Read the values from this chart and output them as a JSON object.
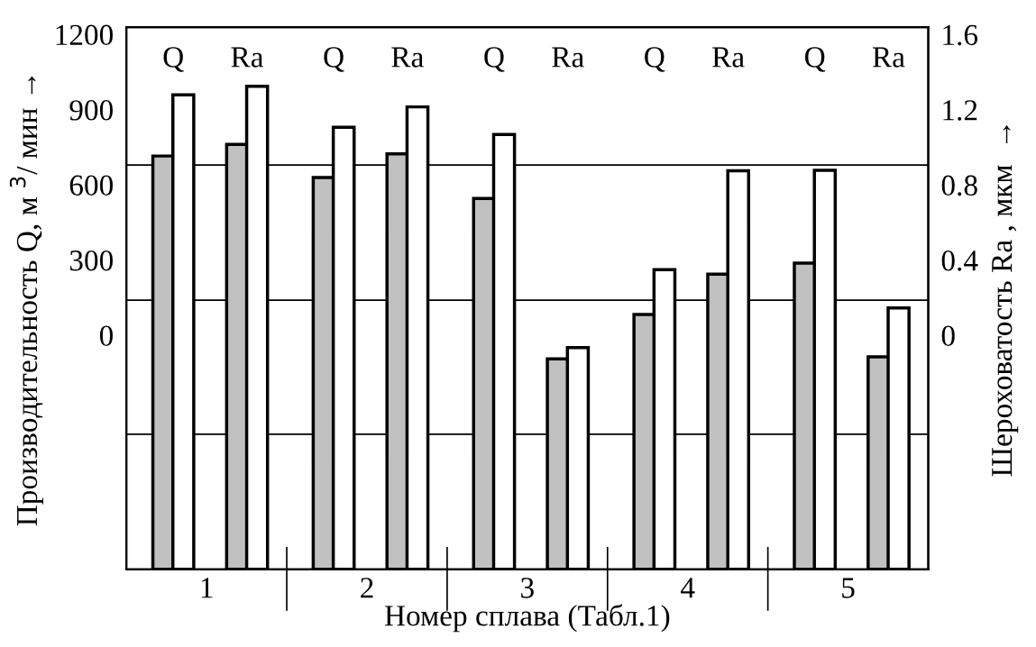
{
  "chart_data": {
    "type": "bar",
    "xlabel": "Номер сплава (Табл.1)",
    "ylabel": "Производительность Q, м $^{3}$/ мин →",
    "y2label": "Шероховатость Ra , мкм  →",
    "categories": [
      "1",
      "2",
      "3",
      "4",
      "5"
    ],
    "series": [
      {
        "color": "#c0c0c0",
        "base": [
          -934,
          -934,
          -934,
          -934,
          -934
        ],
        "values": [
          1649,
          1563,
          1480,
          1017,
          1222
        ]
      },
      {
        "color": "#ffffff",
        "base": [
          -934,
          -934,
          -934,
          -934,
          -934
        ],
        "values": [
          1893,
          1764,
          1735,
          1196,
          1592
        ]
      },
      {
        "color": "#c0c0c0",
        "axis": "y2",
        "base": [
          -1.245,
          -1.245,
          -1.245,
          -1.245,
          -1.245
        ],
        "values": [
          2.26,
          2.21,
          1.12,
          1.57,
          1.13
        ]
      },
      {
        "color": "#ffffff",
        "axis": "y2",
        "base": [
          -1.245,
          -1.245,
          -1.245,
          -1.245,
          -1.245
        ],
        "values": [
          2.57,
          2.46,
          1.18,
          2.12,
          1.39
        ]
      }
    ],
    "ylim": [
      -934,
      1229
    ],
    "yticks": [
      0,
      300,
      600,
      900,
      1200
    ],
    "y2lim": [
      -1.245,
      1.639
    ],
    "y2ticks": [
      0,
      0.4,
      0.8,
      1.2,
      1.6
    ],
    "ref_lines": [
      {
        "axis": "y",
        "value": 679,
        "color": "#000000"
      },
      {
        "axis": "y",
        "value": 140,
        "color": "#000000"
      },
      {
        "axis": "y",
        "value": -395,
        "color": "#000000"
      }
    ],
    "annotations": [
      "Q",
      "Ra",
      "Q",
      "Ra",
      "Q",
      "Ra",
      "Q",
      "Ra",
      "Q",
      "Ra"
    ]
  }
}
